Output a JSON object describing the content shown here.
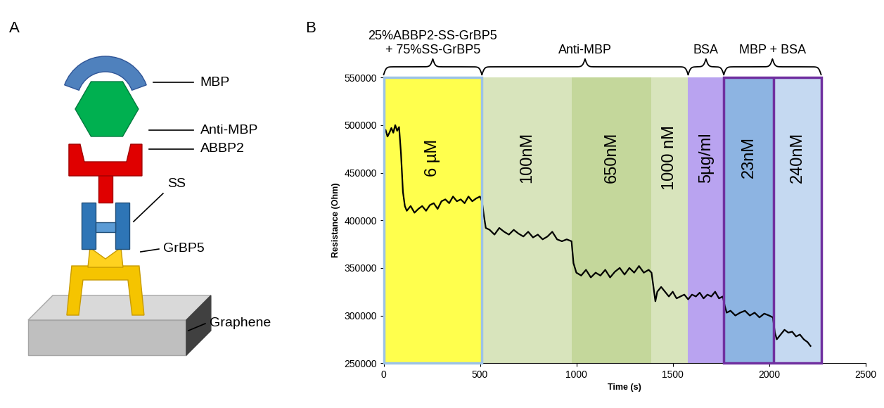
{
  "panel_labels": [
    "A",
    "B"
  ],
  "diagram": {
    "components": [
      "MBP",
      "Anti-MBP",
      "ABBP2",
      "SS",
      "GrBP5",
      "Graphene"
    ]
  },
  "chart_data": {
    "type": "line",
    "xlabel": "Time (s)",
    "ylabel": "Resistance (Ohm)",
    "x": [
      0,
      10,
      20,
      30,
      40,
      50,
      60,
      70,
      80,
      90,
      100,
      110,
      120,
      140,
      160,
      180,
      200,
      220,
      240,
      260,
      280,
      300,
      320,
      340,
      360,
      380,
      400,
      420,
      440,
      460,
      480,
      500,
      510,
      520,
      530,
      550,
      575,
      600,
      625,
      650,
      675,
      700,
      725,
      750,
      775,
      800,
      825,
      850,
      875,
      900,
      925,
      950,
      975,
      985,
      1000,
      1025,
      1050,
      1075,
      1100,
      1125,
      1150,
      1175,
      1200,
      1225,
      1250,
      1275,
      1300,
      1325,
      1350,
      1375,
      1390,
      1400,
      1410,
      1420,
      1440,
      1460,
      1480,
      1500,
      1520,
      1540,
      1560,
      1580,
      1600,
      1620,
      1640,
      1660,
      1680,
      1700,
      1720,
      1740,
      1760,
      1770,
      1780,
      1800,
      1825,
      1850,
      1875,
      1900,
      1925,
      1950,
      1975,
      2000,
      2020,
      2030,
      2040,
      2060,
      2080,
      2100,
      2120,
      2140,
      2160,
      2180,
      2200,
      2215
    ],
    "values": [
      490000,
      495000,
      488000,
      492000,
      497000,
      492000,
      500000,
      494000,
      498000,
      470000,
      430000,
      415000,
      410000,
      415000,
      408000,
      412000,
      415000,
      410000,
      416000,
      418000,
      412000,
      420000,
      422000,
      418000,
      425000,
      420000,
      422000,
      418000,
      425000,
      420000,
      423000,
      425000,
      420000,
      405000,
      392000,
      390000,
      385000,
      392000,
      388000,
      385000,
      390000,
      386000,
      383000,
      388000,
      382000,
      385000,
      380000,
      383000,
      388000,
      380000,
      378000,
      380000,
      378000,
      355000,
      345000,
      342000,
      348000,
      340000,
      345000,
      342000,
      348000,
      340000,
      346000,
      350000,
      343000,
      350000,
      345000,
      352000,
      345000,
      348000,
      345000,
      330000,
      315000,
      325000,
      330000,
      325000,
      320000,
      325000,
      318000,
      320000,
      322000,
      317000,
      322000,
      320000,
      324000,
      318000,
      322000,
      320000,
      325000,
      318000,
      320000,
      310000,
      303000,
      305000,
      300000,
      303000,
      305000,
      300000,
      303000,
      298000,
      302000,
      300000,
      298000,
      282000,
      275000,
      280000,
      285000,
      282000,
      283000,
      278000,
      280000,
      275000,
      272000,
      268000
    ],
    "color": "#000000",
    "xlim": [
      0,
      2500
    ],
    "xticks": [
      0,
      500,
      1000,
      1500,
      2000,
      2500
    ],
    "ylim": [
      250000,
      550000
    ],
    "yticks": [
      250000,
      300000,
      350000,
      400000,
      450000,
      500000,
      550000
    ],
    "regions": [
      {
        "label": "6 µM",
        "start": 0,
        "end": 510,
        "color": "#ffff4d"
      },
      {
        "label": "100nM",
        "start": 510,
        "end": 975,
        "color": "#d8e4bc"
      },
      {
        "label": "650nM",
        "start": 975,
        "end": 1390,
        "color": "#c4d79b"
      },
      {
        "label": "1000 nM",
        "start": 1390,
        "end": 1580,
        "color": "#d8e4bc"
      },
      {
        "label": "5µg/ml",
        "start": 1580,
        "end": 1765,
        "color": "#b9a3f0"
      },
      {
        "label": "23nM",
        "start": 1765,
        "end": 2025,
        "color": "#8db4e2"
      },
      {
        "label": "240nM",
        "start": 2025,
        "end": 2270,
        "color": "#c5d9f1"
      }
    ],
    "groups": [
      {
        "label": "25%ABBP2-SS-GrBP5\n+ 75%SS-GrBP5",
        "start": 0,
        "end": 510,
        "color": "#9dc3e6"
      },
      {
        "label": "Anti-MBP",
        "start": 510,
        "end": 1580
      },
      {
        "label": "BSA",
        "start": 1580,
        "end": 1765
      },
      {
        "label": "MBP + BSA",
        "start": 1765,
        "end": 2270,
        "color": "#7030a0"
      }
    ]
  }
}
